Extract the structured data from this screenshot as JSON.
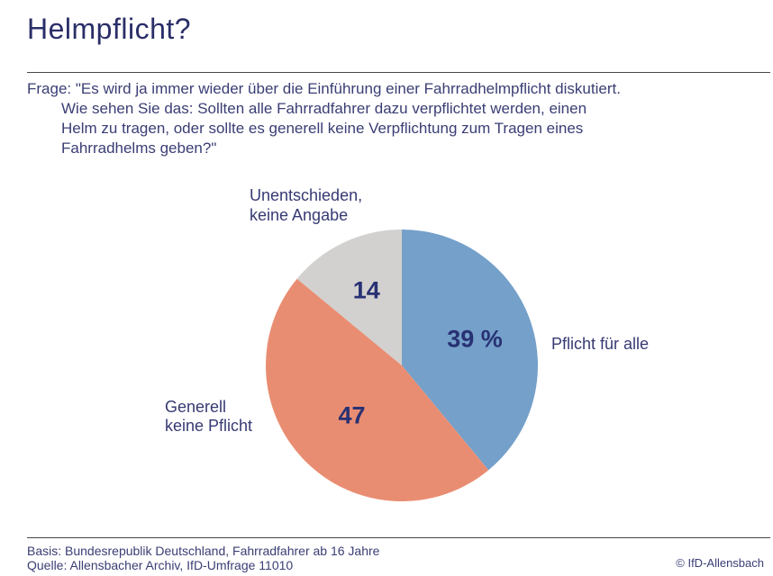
{
  "page": {
    "title": "Helmpflicht?",
    "question": "Frage: \"Es wird ja immer wieder über die Einführung einer Fahrradhelmpflicht diskutiert.\nWie sehen Sie das: Sollten alle Fahrradfahrer dazu verpflichtet werden, einen\nHelm zu tragen, oder sollte es generell keine Verpflichtung zum Tragen eines\nFahrradhelms geben?\"",
    "footer": {
      "basis": "Basis: Bundesrepublik Deutschland, Fahrradfahrer ab 16 Jahre",
      "quelle": "Quelle: Allensbacher Archiv, IfD-Umfrage 11010",
      "copyright": "© IfD-Allensbach"
    }
  },
  "chart_data": {
    "type": "pie",
    "title": "Helmpflicht?",
    "unit": "percent",
    "start_angle_deg": 0,
    "direction": "clockwise",
    "legend_position": "outside-labels",
    "slices": [
      {
        "label": "Pflicht für alle",
        "value": 39,
        "display_value": "39 %",
        "color": "#74a0ca"
      },
      {
        "label": "Generell\nkeine Pflicht",
        "value": 47,
        "display_value": "47",
        "color": "#e98d72"
      },
      {
        "label": "Unentschieden,\nkeine Angabe",
        "value": 14,
        "display_value": "14",
        "color": "#d2d1cf"
      }
    ],
    "value_label_color": "#283173",
    "text_color": "#3a3e74"
  }
}
